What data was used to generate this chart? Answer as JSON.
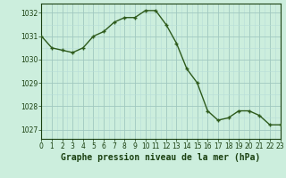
{
  "x": [
    0,
    1,
    2,
    3,
    4,
    5,
    6,
    7,
    8,
    9,
    10,
    11,
    12,
    13,
    14,
    15,
    16,
    17,
    18,
    19,
    20,
    21,
    22,
    23
  ],
  "y": [
    1031.0,
    1030.5,
    1030.4,
    1030.3,
    1030.5,
    1031.0,
    1031.2,
    1031.6,
    1031.8,
    1031.8,
    1032.1,
    1032.1,
    1031.5,
    1030.7,
    1029.6,
    1029.0,
    1027.8,
    1027.4,
    1027.5,
    1027.8,
    1027.8,
    1027.6,
    1027.2,
    1027.2
  ],
  "line_color": "#2d5a1b",
  "bg_color": "#cceedd",
  "grid_color_minor": "#b8ddd8",
  "grid_color_major": "#a0c8c0",
  "title": "Graphe pression niveau de la mer (hPa)",
  "ylabel_ticks": [
    1027,
    1028,
    1029,
    1030,
    1031,
    1032
  ],
  "xlim": [
    0,
    23
  ],
  "ylim": [
    1026.6,
    1032.4
  ],
  "text_color": "#1a4010",
  "tick_fontsize": 5.5,
  "title_fontsize": 7.0
}
